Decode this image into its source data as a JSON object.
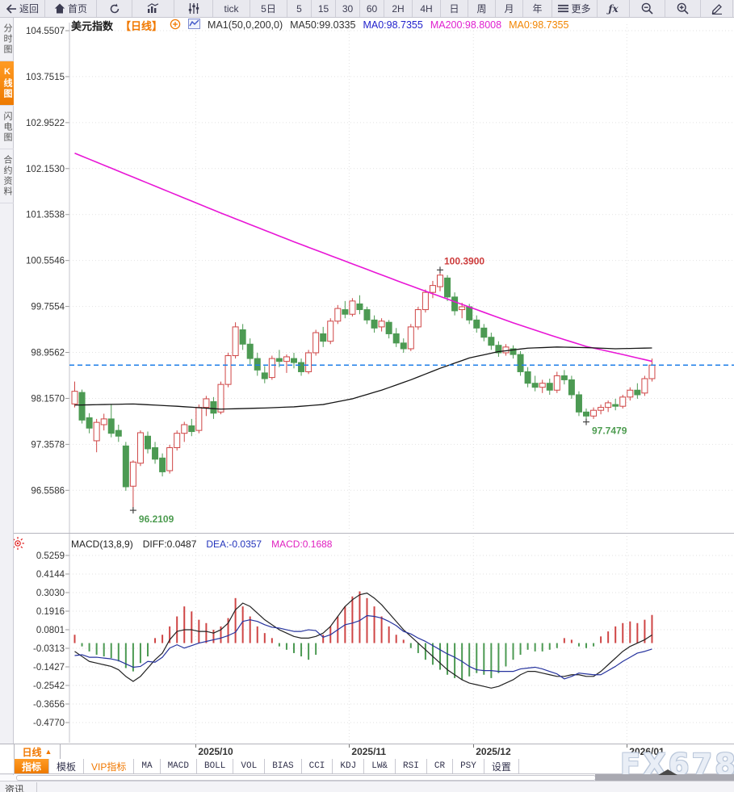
{
  "colors": {
    "accent_orange": "#f07800",
    "up_red": "#cf4545",
    "down_green": "#4c9a53",
    "ma50_black": "#151515",
    "ma200_magenta": "#e816d6",
    "price_line_blue": "#1e7ee8",
    "diff_black": "#222222",
    "dea_blue": "#26339e",
    "grid": "#e2e2e2",
    "axis_text": "#333333"
  },
  "toolbar": {
    "items": [
      {
        "id": "back",
        "icon": "back",
        "label": "返回"
      },
      {
        "id": "home",
        "icon": "home",
        "label": "首页"
      },
      {
        "id": "refresh",
        "icon": "refresh"
      },
      {
        "id": "chart-style",
        "icon": "chart"
      },
      {
        "id": "indicator-settings",
        "icon": "sliders"
      },
      {
        "id": "tick",
        "label": "tick"
      },
      {
        "id": "5d",
        "label": "5日"
      },
      {
        "id": "m5",
        "label": "5"
      },
      {
        "id": "m15",
        "label": "15"
      },
      {
        "id": "m30",
        "label": "30"
      },
      {
        "id": "m60",
        "label": "60"
      },
      {
        "id": "h2",
        "label": "2H"
      },
      {
        "id": "h4",
        "label": "4H"
      },
      {
        "id": "day",
        "label": "日"
      },
      {
        "id": "week",
        "label": "周"
      },
      {
        "id": "month",
        "label": "月"
      },
      {
        "id": "year",
        "label": "年"
      },
      {
        "id": "more",
        "icon": "menu",
        "label": "更多"
      },
      {
        "id": "fx",
        "label": "ƒx",
        "fx": true
      },
      {
        "id": "zoom-out",
        "icon": "zoom-out"
      },
      {
        "id": "zoom-in",
        "icon": "zoom-in"
      },
      {
        "id": "draw",
        "icon": "pencil"
      }
    ]
  },
  "legend": {
    "symbol": "美元指数",
    "period": "【日线】",
    "ma_settings": "MA1(50,0,200,0)",
    "ma50": "MA50:99.0335",
    "ma0_blue": "MA0:98.7355",
    "ma200": "MA200:98.8008",
    "ma0_orange": "MA0:98.7355"
  },
  "sidebar": {
    "items": [
      {
        "label": "分时图",
        "active": false
      },
      {
        "label": "K线图",
        "active": true
      },
      {
        "label": "闪电图",
        "active": false
      },
      {
        "label": "合约资料",
        "active": false
      }
    ]
  },
  "macd_header": {
    "name": "MACD(13,8,9)",
    "diff": "DIFF:0.0487",
    "dea": "DEA:-0.0357",
    "macd": "MACD:0.1688"
  },
  "bottom": {
    "period_tab": "日线",
    "period_arrow": "▲",
    "tabs": [
      {
        "label": "指标",
        "active": true
      },
      {
        "label": "模板"
      },
      {
        "label": "VIP指标",
        "vip": true
      },
      {
        "label": "MA",
        "latin": true
      },
      {
        "label": "MACD",
        "latin": true
      },
      {
        "label": "BOLL",
        "latin": true
      },
      {
        "label": "VOL",
        "latin": true
      },
      {
        "label": "BIAS",
        "latin": true
      },
      {
        "label": "CCI",
        "latin": true
      },
      {
        "label": "KDJ",
        "latin": true
      },
      {
        "label": "LW&",
        "latin": true
      },
      {
        "label": "RSI",
        "latin": true
      },
      {
        "label": "CR",
        "latin": true
      },
      {
        "label": "PSY",
        "latin": true
      },
      {
        "label": "设置"
      }
    ],
    "news_tab": "资讯"
  },
  "watermark": "FX678",
  "chart_data": {
    "type": "candlestick",
    "title": "美元指数 日线 (US Dollar Index, Daily)",
    "legend_values": {
      "ma50": 99.0335,
      "ma0": 98.7355,
      "ma200": 98.8008
    },
    "y_axis_labels": [
      "104.5507",
      "103.7515",
      "102.9522",
      "102.1530",
      "101.3538",
      "100.5546",
      "99.7554",
      "98.9562",
      "98.1570",
      "97.3578",
      "96.5586"
    ],
    "ylim": [
      96.5586,
      104.5507
    ],
    "x_labels": [
      {
        "label": "2025/10",
        "index": 17
      },
      {
        "label": "2025/11",
        "index": 38
      },
      {
        "label": "2025/12",
        "index": 55
      },
      {
        "label": "2026/01",
        "index": 76
      }
    ],
    "current_price": 98.7355,
    "candles": [
      [
        98.06,
        98.45,
        98.0,
        98.28
      ],
      [
        98.26,
        98.31,
        97.72,
        97.78
      ],
      [
        97.82,
        97.9,
        97.55,
        97.64
      ],
      [
        97.42,
        97.8,
        97.22,
        97.74
      ],
      [
        97.7,
        97.89,
        97.6,
        97.8
      ],
      [
        97.8,
        98.06,
        97.48,
        97.55
      ],
      [
        97.6,
        97.7,
        97.4,
        97.5
      ],
      [
        97.33,
        97.4,
        96.55,
        96.62
      ],
      [
        96.63,
        97.08,
        96.2109,
        97.05
      ],
      [
        97.03,
        97.6,
        96.98,
        97.56
      ],
      [
        97.5,
        97.58,
        97.2,
        97.28
      ],
      [
        97.3,
        97.4,
        97.02,
        97.1
      ],
      [
        97.12,
        97.2,
        96.8,
        96.88
      ],
      [
        96.9,
        97.35,
        96.85,
        97.3
      ],
      [
        97.3,
        97.6,
        97.25,
        97.55
      ],
      [
        97.55,
        97.75,
        97.4,
        97.7
      ],
      [
        97.68,
        97.8,
        97.5,
        97.58
      ],
      [
        97.6,
        98.05,
        97.55,
        98.0
      ],
      [
        98.0,
        98.2,
        97.85,
        98.15
      ],
      [
        98.1,
        98.18,
        97.8,
        97.9
      ],
      [
        97.92,
        98.45,
        97.88,
        98.4
      ],
      [
        98.4,
        98.95,
        98.35,
        98.9
      ],
      [
        98.9,
        99.48,
        98.85,
        99.4
      ],
      [
        99.35,
        99.45,
        99.0,
        99.1
      ],
      [
        99.1,
        99.2,
        98.75,
        98.85
      ],
      [
        98.85,
        98.95,
        98.55,
        98.65
      ],
      [
        98.6,
        98.72,
        98.42,
        98.5
      ],
      [
        98.52,
        98.9,
        98.48,
        98.85
      ],
      [
        98.85,
        99.0,
        98.7,
        98.8
      ],
      [
        98.8,
        98.92,
        98.6,
        98.88
      ],
      [
        98.85,
        98.95,
        98.68,
        98.78
      ],
      [
        98.78,
        98.85,
        98.55,
        98.62
      ],
      [
        98.62,
        99.0,
        98.58,
        98.95
      ],
      [
        98.95,
        99.35,
        98.9,
        99.3
      ],
      [
        99.28,
        99.4,
        99.05,
        99.15
      ],
      [
        99.15,
        99.55,
        99.1,
        99.5
      ],
      [
        99.5,
        99.78,
        99.45,
        99.72
      ],
      [
        99.7,
        99.85,
        99.55,
        99.62
      ],
      [
        99.62,
        99.9,
        99.58,
        99.85
      ],
      [
        99.8,
        99.95,
        99.62,
        99.7
      ],
      [
        99.7,
        99.75,
        99.45,
        99.52
      ],
      [
        99.52,
        99.6,
        99.3,
        99.38
      ],
      [
        99.4,
        99.55,
        99.32,
        99.5
      ],
      [
        99.48,
        99.52,
        99.2,
        99.28
      ],
      [
        99.28,
        99.38,
        99.05,
        99.12
      ],
      [
        99.12,
        99.2,
        98.95,
        99.02
      ],
      [
        99.02,
        99.45,
        98.98,
        99.4
      ],
      [
        99.4,
        99.75,
        99.35,
        99.7
      ],
      [
        99.7,
        100.05,
        99.65,
        100.0
      ],
      [
        100.0,
        100.2,
        99.9,
        100.12
      ],
      [
        100.1,
        100.39,
        100.02,
        100.3
      ],
      [
        100.25,
        100.3,
        99.85,
        99.92
      ],
      [
        99.92,
        100.0,
        99.6,
        99.68
      ],
      [
        99.7,
        99.82,
        99.55,
        99.75
      ],
      [
        99.75,
        99.8,
        99.45,
        99.52
      ],
      [
        99.52,
        99.6,
        99.3,
        99.38
      ],
      [
        99.38,
        99.45,
        99.15,
        99.22
      ],
      [
        99.22,
        99.3,
        99.0,
        99.08
      ],
      [
        99.08,
        99.15,
        98.88,
        98.95
      ],
      [
        98.95,
        99.1,
        98.9,
        99.05
      ],
      [
        99.02,
        99.08,
        98.85,
        98.92
      ],
      [
        98.92,
        98.98,
        98.55,
        98.62
      ],
      [
        98.62,
        98.7,
        98.35,
        98.42
      ],
      [
        98.42,
        98.55,
        98.28,
        98.35
      ],
      [
        98.35,
        98.48,
        98.25,
        98.42
      ],
      [
        98.42,
        98.5,
        98.22,
        98.3
      ],
      [
        98.3,
        98.62,
        98.25,
        98.55
      ],
      [
        98.55,
        98.65,
        98.4,
        98.48
      ],
      [
        98.48,
        98.55,
        98.15,
        98.22
      ],
      [
        98.22,
        98.28,
        97.85,
        97.92
      ],
      [
        97.92,
        97.98,
        97.7479,
        97.85
      ],
      [
        97.85,
        98.0,
        97.8,
        97.95
      ],
      [
        97.95,
        98.05,
        97.88,
        98.0
      ],
      [
        98.0,
        98.12,
        97.92,
        98.08
      ],
      [
        98.05,
        98.15,
        97.95,
        98.02
      ],
      [
        98.02,
        98.22,
        97.98,
        98.18
      ],
      [
        98.18,
        98.35,
        98.12,
        98.3
      ],
      [
        98.3,
        98.42,
        98.15,
        98.22
      ],
      [
        98.25,
        98.55,
        98.2,
        98.5
      ],
      [
        98.5,
        98.85,
        98.45,
        98.7355
      ]
    ],
    "ma50_anchors": [
      [
        0,
        98.04
      ],
      [
        8,
        98.06
      ],
      [
        14,
        98.02
      ],
      [
        20,
        97.97
      ],
      [
        26,
        97.99
      ],
      [
        30,
        98.01
      ],
      [
        34,
        98.05
      ],
      [
        38,
        98.15
      ],
      [
        42,
        98.3
      ],
      [
        46,
        98.48
      ],
      [
        50,
        98.68
      ],
      [
        54,
        98.86
      ],
      [
        58,
        98.97
      ],
      [
        62,
        99.03
      ],
      [
        66,
        99.05
      ],
      [
        70,
        99.04
      ],
      [
        74,
        99.02
      ],
      [
        79,
        99.0335
      ]
    ],
    "ma200_anchors": [
      [
        0,
        102.42
      ],
      [
        5,
        102.16
      ],
      [
        10,
        101.9
      ],
      [
        15,
        101.64
      ],
      [
        20,
        101.38
      ],
      [
        25,
        101.13
      ],
      [
        30,
        100.88
      ],
      [
        35,
        100.64
      ],
      [
        40,
        100.4
      ],
      [
        45,
        100.16
      ],
      [
        50,
        99.93
      ],
      [
        55,
        99.7
      ],
      [
        60,
        99.47
      ],
      [
        65,
        99.26
      ],
      [
        70,
        99.06
      ],
      [
        75,
        98.92
      ],
      [
        79,
        98.8008
      ]
    ],
    "annotations": [
      {
        "index": 50,
        "value": 100.39,
        "label": "100.3900",
        "color": "#cc3a3a",
        "pos": "above"
      },
      {
        "index": 8,
        "value": 96.2109,
        "label": "96.2109",
        "color": "#4d9c50",
        "pos": "below"
      },
      {
        "index": 70,
        "value": 97.7479,
        "label": "97.7479",
        "color": "#4d9c50",
        "pos": "below"
      }
    ],
    "macd": {
      "params": "MACD(13,8,9)",
      "diff_last": 0.0487,
      "dea_last": -0.0357,
      "macd_last": 0.1688,
      "y_labels": [
        "0.5259",
        "0.4144",
        "0.3030",
        "0.1916",
        "0.0801",
        "-0.0313",
        "-0.1427",
        "-0.2542",
        "-0.3656",
        "-0.4770"
      ],
      "diff": [
        -0.05,
        -0.08,
        -0.11,
        -0.12,
        -0.13,
        -0.14,
        -0.16,
        -0.2,
        -0.23,
        -0.2,
        -0.15,
        -0.1,
        -0.06,
        0.02,
        0.07,
        0.08,
        0.08,
        0.07,
        0.07,
        0.06,
        0.08,
        0.12,
        0.2,
        0.24,
        0.22,
        0.18,
        0.14,
        0.11,
        0.08,
        0.06,
        0.04,
        0.03,
        0.03,
        0.04,
        0.06,
        0.1,
        0.16,
        0.22,
        0.26,
        0.29,
        0.3,
        0.27,
        0.23,
        0.18,
        0.13,
        0.08,
        0.04,
        0.0,
        -0.04,
        -0.08,
        -0.12,
        -0.16,
        -0.19,
        -0.22,
        -0.24,
        -0.25,
        -0.26,
        -0.27,
        -0.26,
        -0.24,
        -0.22,
        -0.19,
        -0.17,
        -0.17,
        -0.18,
        -0.19,
        -0.2,
        -0.2,
        -0.19,
        -0.19,
        -0.2,
        -0.2,
        -0.17,
        -0.13,
        -0.09,
        -0.05,
        -0.02,
        0.0,
        0.02,
        0.0487
      ],
      "hist": [
        0.05,
        -0.02,
        -0.05,
        -0.07,
        -0.08,
        -0.09,
        -0.11,
        -0.15,
        -0.17,
        -0.12,
        -0.08,
        0.03,
        0.05,
        0.1,
        0.16,
        0.22,
        0.19,
        0.14,
        0.12,
        0.08,
        0.1,
        0.15,
        0.27,
        0.22,
        0.16,
        0.1,
        0.06,
        0.03,
        -0.02,
        -0.04,
        -0.06,
        -0.08,
        -0.1,
        -0.07,
        0.05,
        0.1,
        0.16,
        0.22,
        0.28,
        0.31,
        0.27,
        0.22,
        0.16,
        0.1,
        0.05,
        0.02,
        -0.03,
        -0.06,
        -0.1,
        -0.13,
        -0.16,
        -0.19,
        -0.21,
        -0.22,
        -0.2,
        -0.18,
        -0.19,
        -0.21,
        -0.18,
        -0.14,
        -0.1,
        -0.07,
        -0.04,
        -0.05,
        -0.05,
        -0.04,
        -0.03,
        0.03,
        0.02,
        -0.02,
        -0.03,
        -0.02,
        0.04,
        0.07,
        0.1,
        0.12,
        0.13,
        0.12,
        0.14,
        0.1688
      ]
    }
  }
}
